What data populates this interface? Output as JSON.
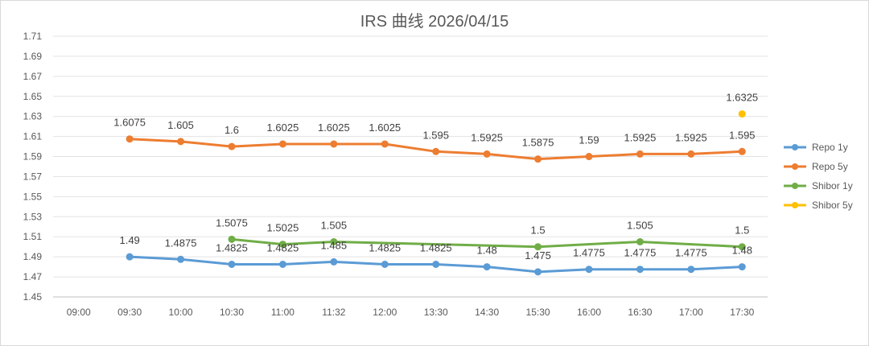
{
  "chart_data": {
    "type": "line",
    "title": "IRS 曲线 2026/04/15",
    "categories": [
      "09:00",
      "09:30",
      "10:00",
      "10:30",
      "11:00",
      "11:32",
      "12:00",
      "13:30",
      "14:30",
      "15:30",
      "16:00",
      "16:30",
      "17:00",
      "17:30"
    ],
    "ylim": [
      1.45,
      1.71
    ],
    "yticks": [
      "1.45",
      "1.47",
      "1.49",
      "1.51",
      "1.53",
      "1.55",
      "1.57",
      "1.59",
      "1.61",
      "1.63",
      "1.65",
      "1.67",
      "1.69",
      "1.71"
    ],
    "grid": true,
    "legend_position": "right",
    "series": [
      {
        "name": "Repo 1y",
        "color": "#5b9bd5",
        "values": [
          null,
          1.49,
          1.4875,
          1.4825,
          1.4825,
          1.485,
          1.4825,
          1.4825,
          1.48,
          1.475,
          1.4775,
          1.4775,
          1.4775,
          1.48
        ],
        "labels": [
          null,
          "1.49",
          "1.4875",
          "1.4825",
          "1.4825",
          "1.485",
          "1.4825",
          "1.4825",
          "1.48",
          "1.475",
          "1.4775",
          "1.4775",
          "1.4775",
          "1.48"
        ]
      },
      {
        "name": "Repo 5y",
        "color": "#ed7d31",
        "values": [
          null,
          1.6075,
          1.605,
          1.6,
          1.6025,
          1.6025,
          1.6025,
          1.595,
          1.5925,
          1.5875,
          1.59,
          1.5925,
          1.5925,
          1.595
        ],
        "labels": [
          null,
          "1.6075",
          "1.605",
          "1.6",
          "1.6025",
          "1.6025",
          "1.6025",
          "1.595",
          "1.5925",
          "1.5875",
          "1.59",
          "1.5925",
          "1.5925",
          "1.595"
        ]
      },
      {
        "name": "Shibor 1y",
        "color": "#70ad47",
        "values": [
          null,
          null,
          null,
          1.5075,
          1.5025,
          1.505,
          null,
          null,
          null,
          1.5,
          null,
          1.505,
          null,
          1.5
        ],
        "labels": [
          null,
          null,
          null,
          "1.5075",
          "1.5025",
          "1.505",
          null,
          null,
          null,
          "1.5",
          null,
          "1.505",
          null,
          "1.5"
        ]
      },
      {
        "name": "Shibor 5y",
        "color": "#ffc000",
        "values": [
          null,
          null,
          null,
          null,
          null,
          null,
          null,
          null,
          null,
          null,
          null,
          null,
          null,
          1.6325
        ],
        "labels": [
          null,
          null,
          null,
          null,
          null,
          null,
          null,
          null,
          null,
          null,
          null,
          null,
          null,
          "1.6325"
        ]
      }
    ]
  }
}
